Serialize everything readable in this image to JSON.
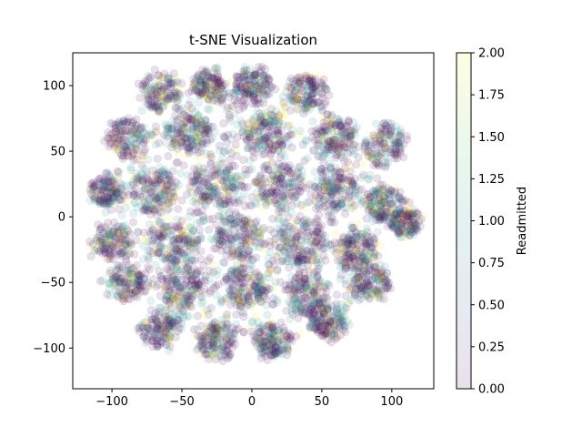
{
  "chart_data": {
    "type": "scatter",
    "title": "t-SNE Visualization",
    "xlabel": "",
    "ylabel": "",
    "xlim": [
      -128,
      130
    ],
    "ylim": [
      -131,
      125
    ],
    "xticks": [
      -100,
      -50,
      0,
      50,
      100
    ],
    "xtick_labels": [
      "−100",
      "−50",
      "0",
      "50",
      "100"
    ],
    "yticks": [
      -100,
      -50,
      0,
      50,
      100
    ],
    "ytick_labels": [
      "−100",
      "−50",
      "0",
      "50",
      "100"
    ],
    "grid": false,
    "colorbar": {
      "label": "Readmitted",
      "range": [
        0.0,
        2.0
      ],
      "ticks": [
        0.0,
        0.25,
        0.5,
        0.75,
        1.0,
        1.25,
        1.5,
        1.75,
        2.0
      ],
      "tick_labels": [
        "0.00",
        "0.25",
        "0.50",
        "0.75",
        "1.00",
        "1.25",
        "1.50",
        "1.75",
        "2.00"
      ],
      "colormap": "viridis",
      "alpha": 0.1
    },
    "series": [
      {
        "name": "Readmitted",
        "marker_alpha": 0.12,
        "cluster_centers": [
          {
            "x": -65,
            "y": 95,
            "spread": 12
          },
          {
            "x": -30,
            "y": 100,
            "spread": 10
          },
          {
            "x": 0,
            "y": 100,
            "spread": 10
          },
          {
            "x": 40,
            "y": 95,
            "spread": 11
          },
          {
            "x": -90,
            "y": 60,
            "spread": 12
          },
          {
            "x": -45,
            "y": 65,
            "spread": 12
          },
          {
            "x": 10,
            "y": 65,
            "spread": 13
          },
          {
            "x": 60,
            "y": 60,
            "spread": 12
          },
          {
            "x": 95,
            "y": 55,
            "spread": 12
          },
          {
            "x": -105,
            "y": 20,
            "spread": 10
          },
          {
            "x": -70,
            "y": 20,
            "spread": 13
          },
          {
            "x": -25,
            "y": 25,
            "spread": 14
          },
          {
            "x": 20,
            "y": 25,
            "spread": 14
          },
          {
            "x": 60,
            "y": 20,
            "spread": 13
          },
          {
            "x": 95,
            "y": 10,
            "spread": 11
          },
          {
            "x": -100,
            "y": -20,
            "spread": 11
          },
          {
            "x": -55,
            "y": -20,
            "spread": 14
          },
          {
            "x": -10,
            "y": -15,
            "spread": 14
          },
          {
            "x": 35,
            "y": -20,
            "spread": 14
          },
          {
            "x": 75,
            "y": -25,
            "spread": 12
          },
          {
            "x": 110,
            "y": -5,
            "spread": 8
          },
          {
            "x": -90,
            "y": -50,
            "spread": 11
          },
          {
            "x": -50,
            "y": -55,
            "spread": 13
          },
          {
            "x": -5,
            "y": -55,
            "spread": 13
          },
          {
            "x": 40,
            "y": -60,
            "spread": 13
          },
          {
            "x": 85,
            "y": -50,
            "spread": 11
          },
          {
            "x": -65,
            "y": -85,
            "spread": 11
          },
          {
            "x": -25,
            "y": -95,
            "spread": 11
          },
          {
            "x": 15,
            "y": -95,
            "spread": 10
          },
          {
            "x": 55,
            "y": -80,
            "spread": 10
          }
        ]
      }
    ]
  }
}
